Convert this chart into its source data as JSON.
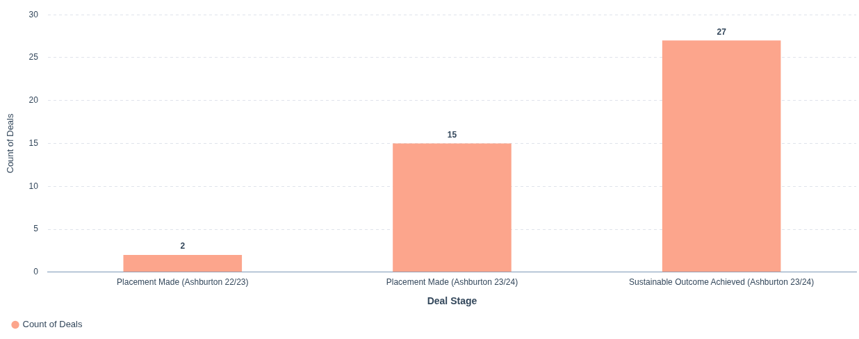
{
  "chart_data": {
    "type": "bar",
    "xlabel": "Deal Stage",
    "ylabel": "Count of Deals",
    "categories": [
      "Placement Made (Ashburton 22/23)",
      "Placement Made (Ashburton 23/24)",
      "Sustainable Outcome Achieved (Ashburton 23/24)"
    ],
    "series": [
      {
        "name": "Count of Deals",
        "color": "#fca58c",
        "values": [
          2,
          15,
          27
        ]
      }
    ],
    "ylim": [
      0,
      30
    ],
    "yticks": [
      0,
      5,
      10,
      15,
      20,
      25,
      30
    ],
    "grid": "y",
    "legend": "bottom left",
    "data_labels": true
  }
}
